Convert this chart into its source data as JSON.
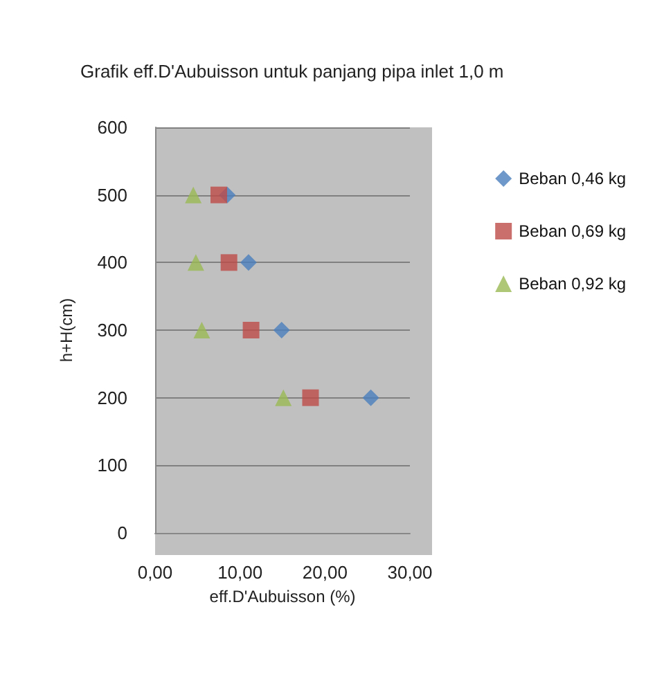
{
  "chart_data": {
    "type": "scatter",
    "title": "Grafik eff.D'Aubuisson untuk panjang pipa inlet 1,0 m",
    "xlabel": "eff.D'Aubuisson (%)",
    "ylabel": "h+H(cm)",
    "xlim": [
      0,
      30
    ],
    "xticks": [
      {
        "value": 0,
        "label": "0,00"
      },
      {
        "value": 10,
        "label": "10,00"
      },
      {
        "value": 20,
        "label": "20,00"
      },
      {
        "value": 30,
        "label": "30,00"
      }
    ],
    "ylim": [
      0,
      600
    ],
    "yticks": [
      0,
      100,
      200,
      300,
      400,
      500,
      600
    ],
    "grid": "y",
    "legend": "right",
    "series": [
      {
        "name": "Beban 0,46 kg",
        "color": "#4a7ebb",
        "marker": "diamond",
        "x": [
          8.5,
          11.0,
          14.9,
          25.4
        ],
        "values": [
          500,
          400,
          300,
          200
        ]
      },
      {
        "name": "Beban 0,69 kg",
        "color": "#be4b48",
        "marker": "square",
        "x": [
          7.5,
          8.7,
          11.3,
          18.3
        ],
        "values": [
          500,
          400,
          300,
          200
        ]
      },
      {
        "name": "Beban 0,92 kg",
        "color": "#98b954",
        "marker": "triangle",
        "x": [
          4.5,
          4.8,
          5.5,
          15.1
        ],
        "values": [
          500,
          400,
          300,
          200
        ]
      }
    ]
  }
}
